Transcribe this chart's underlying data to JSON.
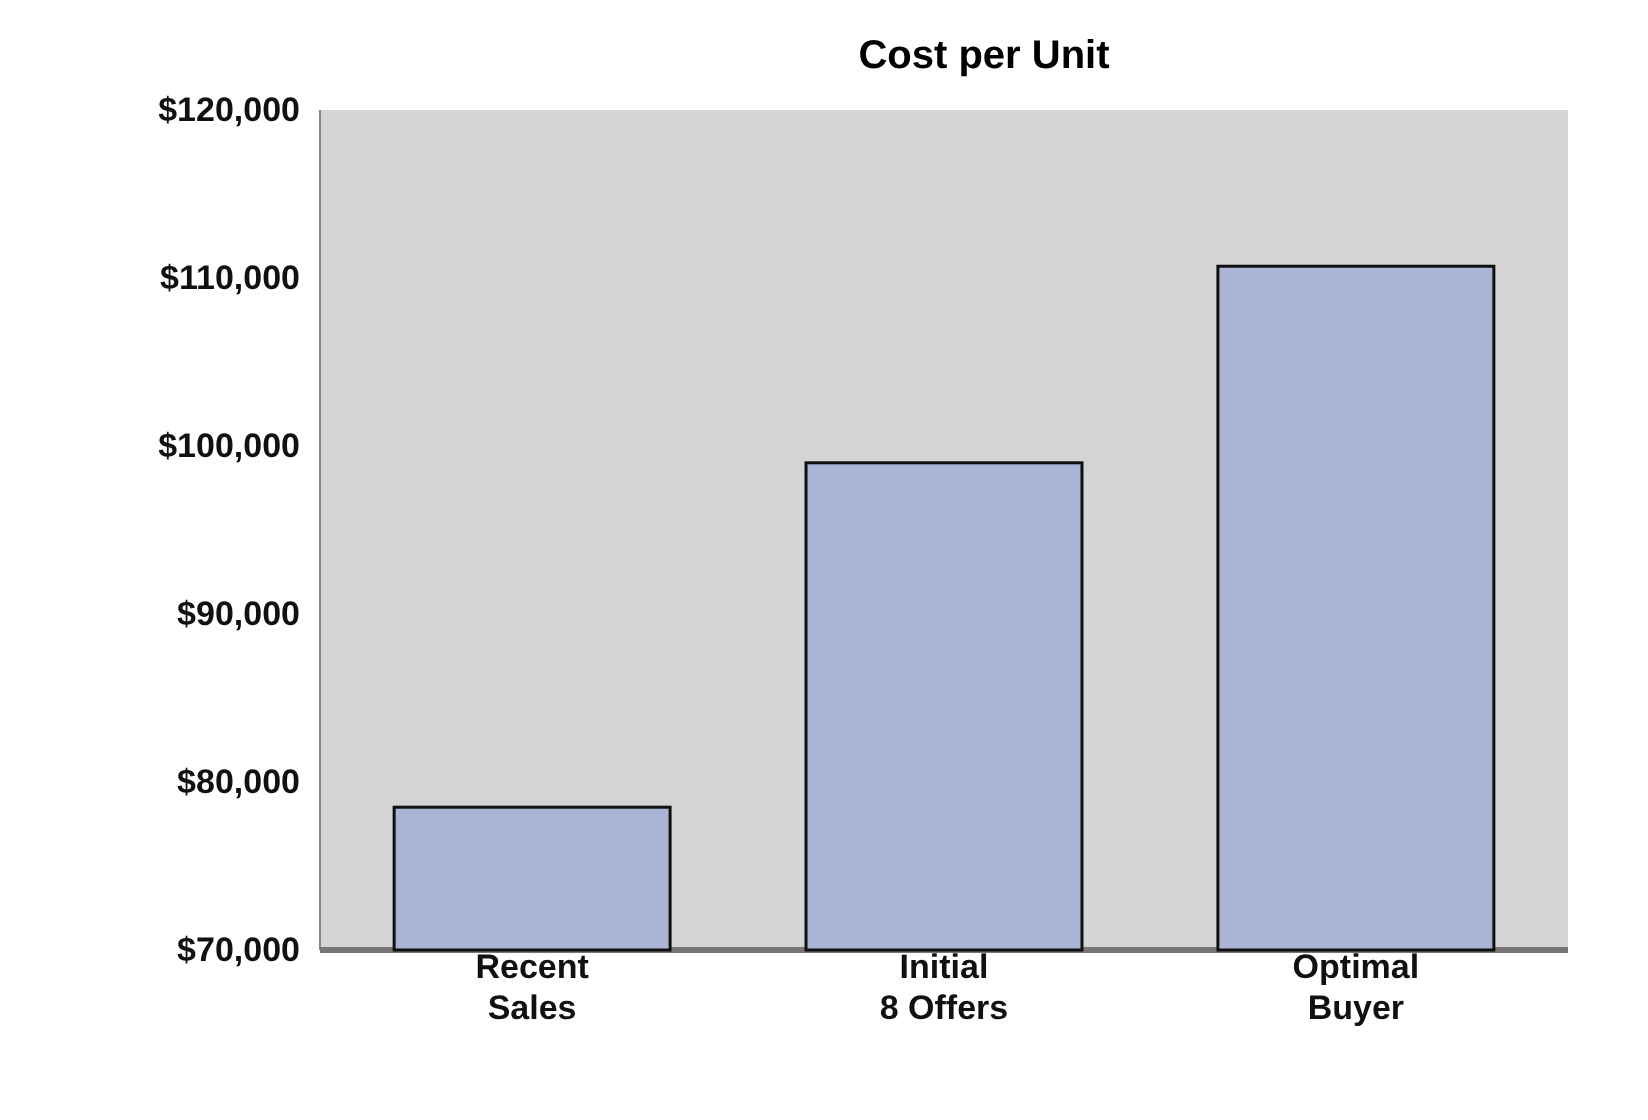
{
  "chart_data": {
    "type": "bar",
    "title": "Cost per Unit",
    "categories": [
      "Recent\nSales",
      "Initial\n8 Offers",
      "Optimal\nBuyer"
    ],
    "values": [
      78500,
      99000,
      110700
    ],
    "color": "#aab4d4",
    "ylim": [
      70000,
      120000
    ],
    "yticks": [
      {
        "value": 70000,
        "label": "$70,000"
      },
      {
        "value": 80000,
        "label": "$80,000"
      },
      {
        "value": 90000,
        "label": "$90,000"
      },
      {
        "value": 100000,
        "label": "$100,000"
      },
      {
        "value": 110000,
        "label": "$110,000"
      },
      {
        "value": 120000,
        "label": "$120,000"
      }
    ],
    "grid": false
  }
}
